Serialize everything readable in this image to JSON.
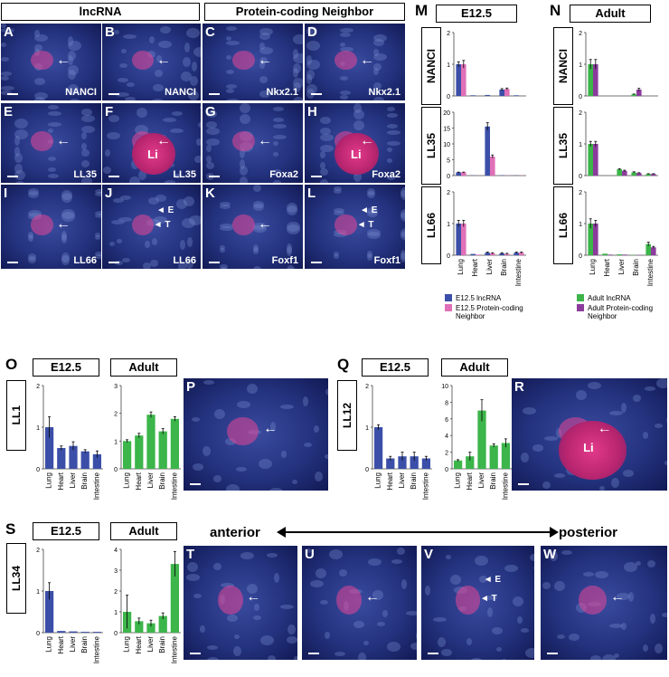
{
  "headers": {
    "lncrna": "lncRNA",
    "protein_coding": "Protein-coding Neighbor"
  },
  "panels": [
    {
      "id": "A",
      "tag": "NANCI"
    },
    {
      "id": "B",
      "tag": "NANCI"
    },
    {
      "id": "C",
      "tag": "Nkx2.1"
    },
    {
      "id": "D",
      "tag": "Nkx2.1"
    },
    {
      "id": "E",
      "tag": "LL35"
    },
    {
      "id": "F",
      "tag": "LL35",
      "center": "Li"
    },
    {
      "id": "G",
      "tag": "Foxa2"
    },
    {
      "id": "H",
      "tag": "Foxa2",
      "center": "Li"
    },
    {
      "id": "I",
      "tag": "LL66"
    },
    {
      "id": "J",
      "tag": "LL66",
      "e": "E",
      "t": "T"
    },
    {
      "id": "K",
      "tag": "Foxf1"
    },
    {
      "id": "L",
      "tag": "Foxf1",
      "e": "E",
      "t": "T"
    },
    {
      "id": "P"
    },
    {
      "id": "R",
      "center": "Li"
    },
    {
      "id": "T"
    },
    {
      "id": "U"
    },
    {
      "id": "V",
      "e": "E",
      "t": "T"
    },
    {
      "id": "W"
    }
  ],
  "section_labels": {
    "M": "M",
    "N": "N",
    "O": "O",
    "Q": "Q",
    "S": "S"
  },
  "stage_labels": {
    "e125": "E12.5",
    "adult": "Adult"
  },
  "axis_labels": {
    "anterior": "anterior",
    "posterior": "posterior"
  },
  "legend": {
    "e125_lnc": "E12.5 lncRNA",
    "e125_pc": "E12.5 Protein-coding Neighbor",
    "adult_lnc": "Adult lncRNA",
    "adult_pc": "Adult Protein-coding Neighbor"
  },
  "colors": {
    "blue": "#3b4fa8",
    "pink": "#e070b8",
    "green": "#3cb54a",
    "purple": "#8b3c9c"
  },
  "chart_data": [
    {
      "id": "M-NANCI",
      "type": "bar",
      "gene": "NANCI",
      "stage": "E12.5",
      "categories": [
        "Lung",
        "Heart",
        "Liver",
        "Brain",
        "Intestine"
      ],
      "ylim": [
        0,
        2
      ],
      "yticks": [
        0,
        1,
        2
      ],
      "series": [
        {
          "name": "E12.5 lncRNA",
          "color": "#3b4fa8",
          "values": [
            1.0,
            0.02,
            0.03,
            0.2,
            0.02
          ],
          "err": [
            0.08,
            0,
            0,
            0.03,
            0
          ]
        },
        {
          "name": "E12.5 Protein-coding Neighbor",
          "color": "#e070b8",
          "values": [
            1.0,
            0.0,
            0.0,
            0.22,
            0.0
          ],
          "err": [
            0.12,
            0,
            0,
            0.03,
            0
          ]
        }
      ]
    },
    {
      "id": "M-LL35",
      "type": "bar",
      "gene": "LL35",
      "stage": "E12.5",
      "categories": [
        "Lung",
        "Heart",
        "Liver",
        "Brain",
        "Intestine"
      ],
      "ylim": [
        0,
        20
      ],
      "yticks": [
        0,
        5,
        10,
        15,
        20
      ],
      "series": [
        {
          "name": "E12.5 lncRNA",
          "color": "#3b4fa8",
          "values": [
            1.0,
            0.05,
            15.5,
            0.1,
            0.05
          ],
          "err": [
            0.1,
            0,
            1.2,
            0,
            0
          ]
        },
        {
          "name": "E12.5 Protein-coding Neighbor",
          "color": "#e070b8",
          "values": [
            1.0,
            0.02,
            6.0,
            0.05,
            0.05
          ],
          "err": [
            0.1,
            0,
            0.5,
            0,
            0
          ]
        }
      ]
    },
    {
      "id": "M-LL66",
      "type": "bar",
      "gene": "LL66",
      "stage": "E12.5",
      "categories": [
        "Lung",
        "Heart",
        "Liver",
        "Brain",
        "Intestine"
      ],
      "ylim": [
        0,
        2
      ],
      "yticks": [
        0,
        1,
        2
      ],
      "series": [
        {
          "name": "E12.5 lncRNA",
          "color": "#3b4fa8",
          "values": [
            1.0,
            0.04,
            0.08,
            0.06,
            0.08
          ],
          "err": [
            0.1,
            0,
            0.02,
            0.02,
            0.02
          ]
        },
        {
          "name": "E12.5 Protein-coding Neighbor",
          "color": "#e070b8",
          "values": [
            1.0,
            0.02,
            0.06,
            0.04,
            0.08
          ],
          "err": [
            0.1,
            0,
            0.02,
            0.02,
            0.02
          ]
        }
      ]
    },
    {
      "id": "N-NANCI",
      "type": "bar",
      "gene": "NANCI",
      "stage": "Adult",
      "categories": [
        "Lung",
        "Heart",
        "Liver",
        "Brain",
        "Intestine"
      ],
      "ylim": [
        0,
        2
      ],
      "yticks": [
        0,
        1,
        2
      ],
      "series": [
        {
          "name": "Adult lncRNA",
          "color": "#3cb54a",
          "values": [
            1.0,
            0.0,
            0.0,
            0.05,
            0.0
          ],
          "err": [
            0.15,
            0,
            0,
            0.01,
            0
          ]
        },
        {
          "name": "Adult Protein-coding Neighbor",
          "color": "#8b3c9c",
          "values": [
            1.0,
            0.0,
            0.0,
            0.2,
            0.0
          ],
          "err": [
            0.15,
            0,
            0,
            0.04,
            0
          ]
        }
      ]
    },
    {
      "id": "N-LL35",
      "type": "bar",
      "gene": "LL35",
      "stage": "Adult",
      "categories": [
        "Lung",
        "Heart",
        "Liver",
        "Brain",
        "Intestine"
      ],
      "ylim": [
        0,
        2
      ],
      "yticks": [
        0,
        1,
        2
      ],
      "series": [
        {
          "name": "Adult lncRNA",
          "color": "#3cb54a",
          "values": [
            1.0,
            0.0,
            0.2,
            0.1,
            0.05
          ],
          "err": [
            0.08,
            0,
            0.02,
            0.02,
            0.01
          ]
        },
        {
          "name": "Adult Protein-coding Neighbor",
          "color": "#8b3c9c",
          "values": [
            1.0,
            0.0,
            0.15,
            0.08,
            0.05
          ],
          "err": [
            0.08,
            0,
            0.02,
            0.01,
            0.01
          ]
        }
      ]
    },
    {
      "id": "N-LL66",
      "type": "bar",
      "gene": "LL66",
      "stage": "Adult",
      "categories": [
        "Lung",
        "Heart",
        "Liver",
        "Brain",
        "Intestine"
      ],
      "ylim": [
        0,
        2
      ],
      "yticks": [
        0,
        1,
        2
      ],
      "series": [
        {
          "name": "Adult lncRNA",
          "color": "#3cb54a",
          "values": [
            1.0,
            0.05,
            0.03,
            0.01,
            0.35
          ],
          "err": [
            0.15,
            0,
            0,
            0,
            0.06
          ]
        },
        {
          "name": "Adult Protein-coding Neighbor",
          "color": "#8b3c9c",
          "values": [
            1.0,
            0.02,
            0.02,
            0.01,
            0.25
          ],
          "err": [
            0.1,
            0,
            0,
            0,
            0.03
          ]
        }
      ]
    },
    {
      "id": "O-E12.5",
      "type": "bar",
      "gene": "LL1",
      "stage": "E12.5",
      "categories": [
        "Lung",
        "Heart",
        "Liver",
        "Brain",
        "Intestine"
      ],
      "ylim": [
        0,
        2
      ],
      "yticks": [
        0,
        1,
        2
      ],
      "series": [
        {
          "name": "E12.5 lncRNA",
          "color": "#3b4fa8",
          "values": [
            1.0,
            0.5,
            0.55,
            0.42,
            0.35
          ],
          "err": [
            0.25,
            0.05,
            0.1,
            0.04,
            0.08
          ]
        }
      ]
    },
    {
      "id": "O-Adult",
      "type": "bar",
      "gene": "LL1",
      "stage": "Adult",
      "categories": [
        "Lung",
        "Heart",
        "Liver",
        "Brain",
        "Intestine"
      ],
      "ylim": [
        0,
        3
      ],
      "yticks": [
        0,
        1,
        2,
        3
      ],
      "series": [
        {
          "name": "Adult lncRNA",
          "color": "#3cb54a",
          "values": [
            1.0,
            1.2,
            1.95,
            1.35,
            1.8
          ],
          "err": [
            0.05,
            0.08,
            0.1,
            0.1,
            0.08
          ]
        }
      ]
    },
    {
      "id": "Q-E12.5",
      "type": "bar",
      "gene": "LL12",
      "stage": "E12.5",
      "categories": [
        "Lung",
        "Heart",
        "Liver",
        "Brain",
        "Intestine"
      ],
      "ylim": [
        0,
        2
      ],
      "yticks": [
        0,
        1,
        2
      ],
      "series": [
        {
          "name": "E12.5 lncRNA",
          "color": "#3b4fa8",
          "values": [
            1.0,
            0.25,
            0.3,
            0.3,
            0.25
          ],
          "err": [
            0.06,
            0.05,
            0.1,
            0.1,
            0.05
          ]
        }
      ]
    },
    {
      "id": "Q-Adult",
      "type": "bar",
      "gene": "LL12",
      "stage": "Adult",
      "categories": [
        "Lung",
        "Heart",
        "Liver",
        "Brain",
        "Intestine"
      ],
      "ylim": [
        0,
        10
      ],
      "yticks": [
        0,
        2,
        4,
        6,
        8,
        10
      ],
      "series": [
        {
          "name": "Adult lncRNA",
          "color": "#3cb54a",
          "values": [
            1.0,
            1.5,
            7.0,
            2.8,
            3.1
          ],
          "err": [
            0.1,
            0.5,
            1.3,
            0.2,
            0.5
          ]
        }
      ]
    },
    {
      "id": "S-E12.5",
      "type": "bar",
      "gene": "LL34",
      "stage": "E12.5",
      "categories": [
        "Lung",
        "Heart",
        "Liver",
        "Brain",
        "Intestine"
      ],
      "ylim": [
        0,
        2
      ],
      "yticks": [
        0,
        1,
        2
      ],
      "series": [
        {
          "name": "E12.5 lncRNA",
          "color": "#3b4fa8",
          "values": [
            1.0,
            0.04,
            0.03,
            0.02,
            0.02
          ],
          "err": [
            0.2,
            0,
            0,
            0,
            0
          ]
        }
      ]
    },
    {
      "id": "S-Adult",
      "type": "bar",
      "gene": "LL34",
      "stage": "Adult",
      "categories": [
        "Lung",
        "Heart",
        "Liver",
        "Brain",
        "Intestine"
      ],
      "ylim": [
        0,
        4
      ],
      "yticks": [
        0,
        1,
        2,
        3,
        4
      ],
      "series": [
        {
          "name": "Adult lncRNA",
          "color": "#3cb54a",
          "values": [
            1.0,
            0.55,
            0.45,
            0.8,
            3.3
          ],
          "err": [
            0.8,
            0.15,
            0.15,
            0.15,
            0.6
          ]
        }
      ]
    }
  ]
}
